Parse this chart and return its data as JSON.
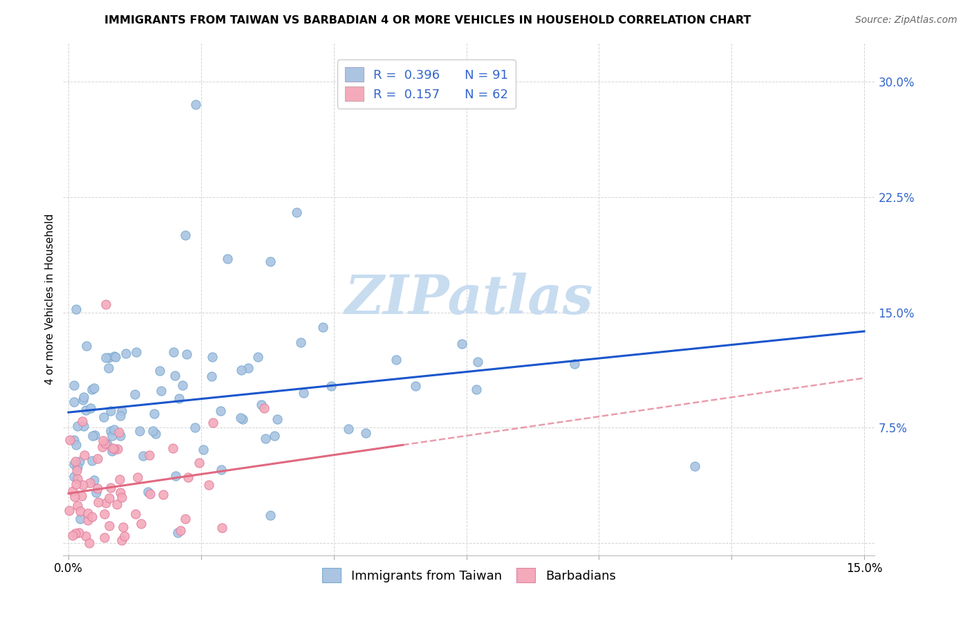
{
  "title": "IMMIGRANTS FROM TAIWAN VS BARBADIAN 4 OR MORE VEHICLES IN HOUSEHOLD CORRELATION CHART",
  "source": "Source: ZipAtlas.com",
  "ylabel_label": "4 or more Vehicles in Household",
  "xlim": [
    0.0,
    0.15
  ],
  "ylim": [
    0.0,
    0.32
  ],
  "legend_r1": "R = 0.396",
  "legend_n1": "N = 91",
  "legend_r2": "R = 0.157",
  "legend_n2": "N = 62",
  "taiwan_color": "#aac4e2",
  "taiwan_edge_color": "#7aaad0",
  "barbadian_color": "#f4aabb",
  "barbadian_edge_color": "#e080a0",
  "taiwan_line_color": "#1a56cc",
  "barbadian_line_color": "#e06880",
  "right_axis_color": "#3366cc",
  "background_color": "#ffffff",
  "watermark": "ZIPatlas",
  "watermark_color": "#c8dcf0",
  "grid_color": "#d0d0d0",
  "title_fontsize": 11.5,
  "source_fontsize": 10,
  "tick_fontsize": 12,
  "legend_fontsize": 13
}
